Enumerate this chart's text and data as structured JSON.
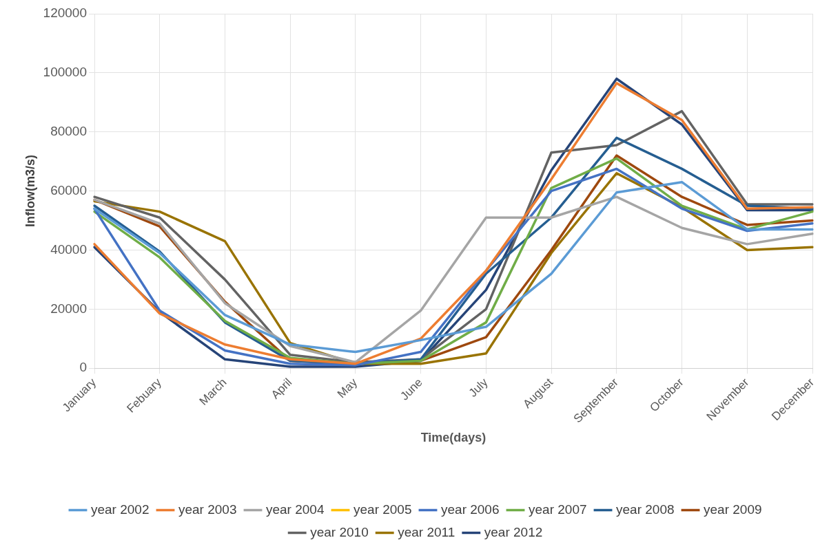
{
  "chart_data": {
    "type": "line",
    "xlabel": "Time(days)",
    "ylabel": "Inflow(m3/s)",
    "categories": [
      "January",
      "Febuary",
      "March",
      "April",
      "May",
      "June",
      "July",
      "August",
      "September",
      "October",
      "November",
      "December"
    ],
    "ylim": [
      0,
      120000
    ],
    "yticks": [
      0,
      20000,
      40000,
      60000,
      80000,
      100000,
      120000
    ],
    "grid": true,
    "legend": "bottom",
    "marker": "none",
    "line_style": "solid",
    "series": [
      {
        "name": "year 2002",
        "color": "#5b9bd5",
        "values": [
          54000,
          39000,
          18000,
          8000,
          5500,
          9500,
          14000,
          32000,
          59500,
          63000,
          47000,
          47000
        ]
      },
      {
        "name": "year 2003",
        "color": "#ed7d31",
        "values": [
          42000,
          18500,
          8000,
          3000,
          1500,
          10000,
          33000,
          64000,
          96500,
          84000,
          54000,
          54500
        ]
      },
      {
        "name": "year 2004",
        "color": "#a5a5a5",
        "values": [
          57000,
          49000,
          22000,
          7500,
          2000,
          19500,
          51000,
          51000,
          58000,
          47500,
          42000,
          45500
        ]
      },
      {
        "name": "year 2005",
        "color": "#ffc000",
        "values": [
          null,
          null,
          null,
          null,
          null,
          null,
          null,
          null,
          null,
          null,
          null,
          null
        ]
      },
      {
        "name": "year 2006",
        "color": "#4472c4",
        "values": [
          54000,
          19500,
          6000,
          1500,
          1000,
          5500,
          33000,
          60000,
          67500,
          54000,
          46500,
          49000
        ]
      },
      {
        "name": "year 2007",
        "color": "#70ad47",
        "values": [
          53000,
          37500,
          16000,
          3500,
          1500,
          2500,
          15500,
          61000,
          71000,
          55000,
          47000,
          53000
        ]
      },
      {
        "name": "year 2008",
        "color": "#255e91",
        "values": [
          55000,
          39500,
          15500,
          2500,
          1500,
          3000,
          32000,
          51000,
          78000,
          67500,
          55000,
          54000
        ]
      },
      {
        "name": "year 2009",
        "color": "#9e480e",
        "values": [
          57000,
          48000,
          22500,
          2500,
          1500,
          2500,
          10500,
          40000,
          72000,
          58000,
          48500,
          50000
        ]
      },
      {
        "name": "year 2010",
        "color": "#636363",
        "values": [
          58000,
          51000,
          30000,
          4500,
          2000,
          3000,
          20000,
          73000,
          75500,
          87000,
          55500,
          55500
        ]
      },
      {
        "name": "year 2011",
        "color": "#997300",
        "values": [
          56500,
          53000,
          43000,
          8500,
          1500,
          1500,
          5000,
          39000,
          66000,
          54500,
          40000,
          41000
        ]
      },
      {
        "name": "year 2012",
        "color": "#264478",
        "values": [
          41000,
          19000,
          3000,
          500,
          500,
          2500,
          26500,
          67000,
          98000,
          82500,
          53500,
          53500
        ]
      }
    ]
  }
}
